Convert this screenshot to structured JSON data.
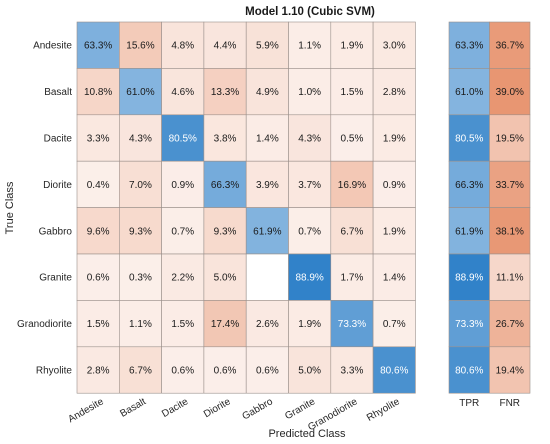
{
  "chart_data": [
    {
      "type": "heatmap",
      "title": "Model 1.10 (Cubic SVM)",
      "xlabel": "Predicted Class",
      "ylabel": "True Class",
      "row_labels": [
        "Andesite",
        "Basalt",
        "Dacite",
        "Diorite",
        "Gabbro",
        "Granite",
        "Granodiorite",
        "Rhyolite"
      ],
      "column_labels": [
        "Andesite",
        "Basalt",
        "Dacite",
        "Diorite",
        "Gabbro",
        "Granite",
        "Granodiorite",
        "Rhyolite"
      ],
      "values": [
        [
          63.3,
          15.6,
          4.8,
          4.4,
          5.9,
          1.1,
          1.9,
          3.0
        ],
        [
          10.8,
          61.0,
          4.6,
          13.3,
          4.9,
          1.0,
          1.5,
          2.8
        ],
        [
          3.3,
          4.3,
          80.5,
          3.8,
          1.4,
          4.3,
          0.5,
          1.9
        ],
        [
          0.4,
          7.0,
          0.9,
          66.3,
          3.9,
          3.7,
          16.9,
          0.9
        ],
        [
          9.6,
          9.3,
          0.7,
          9.3,
          61.9,
          0.7,
          6.7,
          1.9
        ],
        [
          0.6,
          0.3,
          2.2,
          5.0,
          null,
          88.9,
          1.7,
          1.4
        ],
        [
          1.5,
          1.1,
          1.5,
          17.4,
          2.6,
          1.9,
          73.3,
          0.7
        ],
        [
          2.8,
          6.7,
          0.6,
          0.6,
          0.6,
          5.0,
          3.3,
          80.6
        ]
      ],
      "value_suffix": "%",
      "diagonal_color": "#1f77c4",
      "off_diagonal_color": "#d9541a"
    },
    {
      "type": "heatmap",
      "column_labels": [
        "TPR",
        "FNR"
      ],
      "values": [
        [
          63.3,
          36.7
        ],
        [
          61.0,
          39.0
        ],
        [
          80.5,
          19.5
        ],
        [
          66.3,
          33.7
        ],
        [
          61.9,
          38.1
        ],
        [
          88.9,
          11.1
        ],
        [
          73.3,
          26.7
        ],
        [
          80.6,
          19.4
        ]
      ],
      "value_suffix": "%",
      "tpr_color": "#1f77c4",
      "fnr_color": "#d9541a"
    }
  ]
}
